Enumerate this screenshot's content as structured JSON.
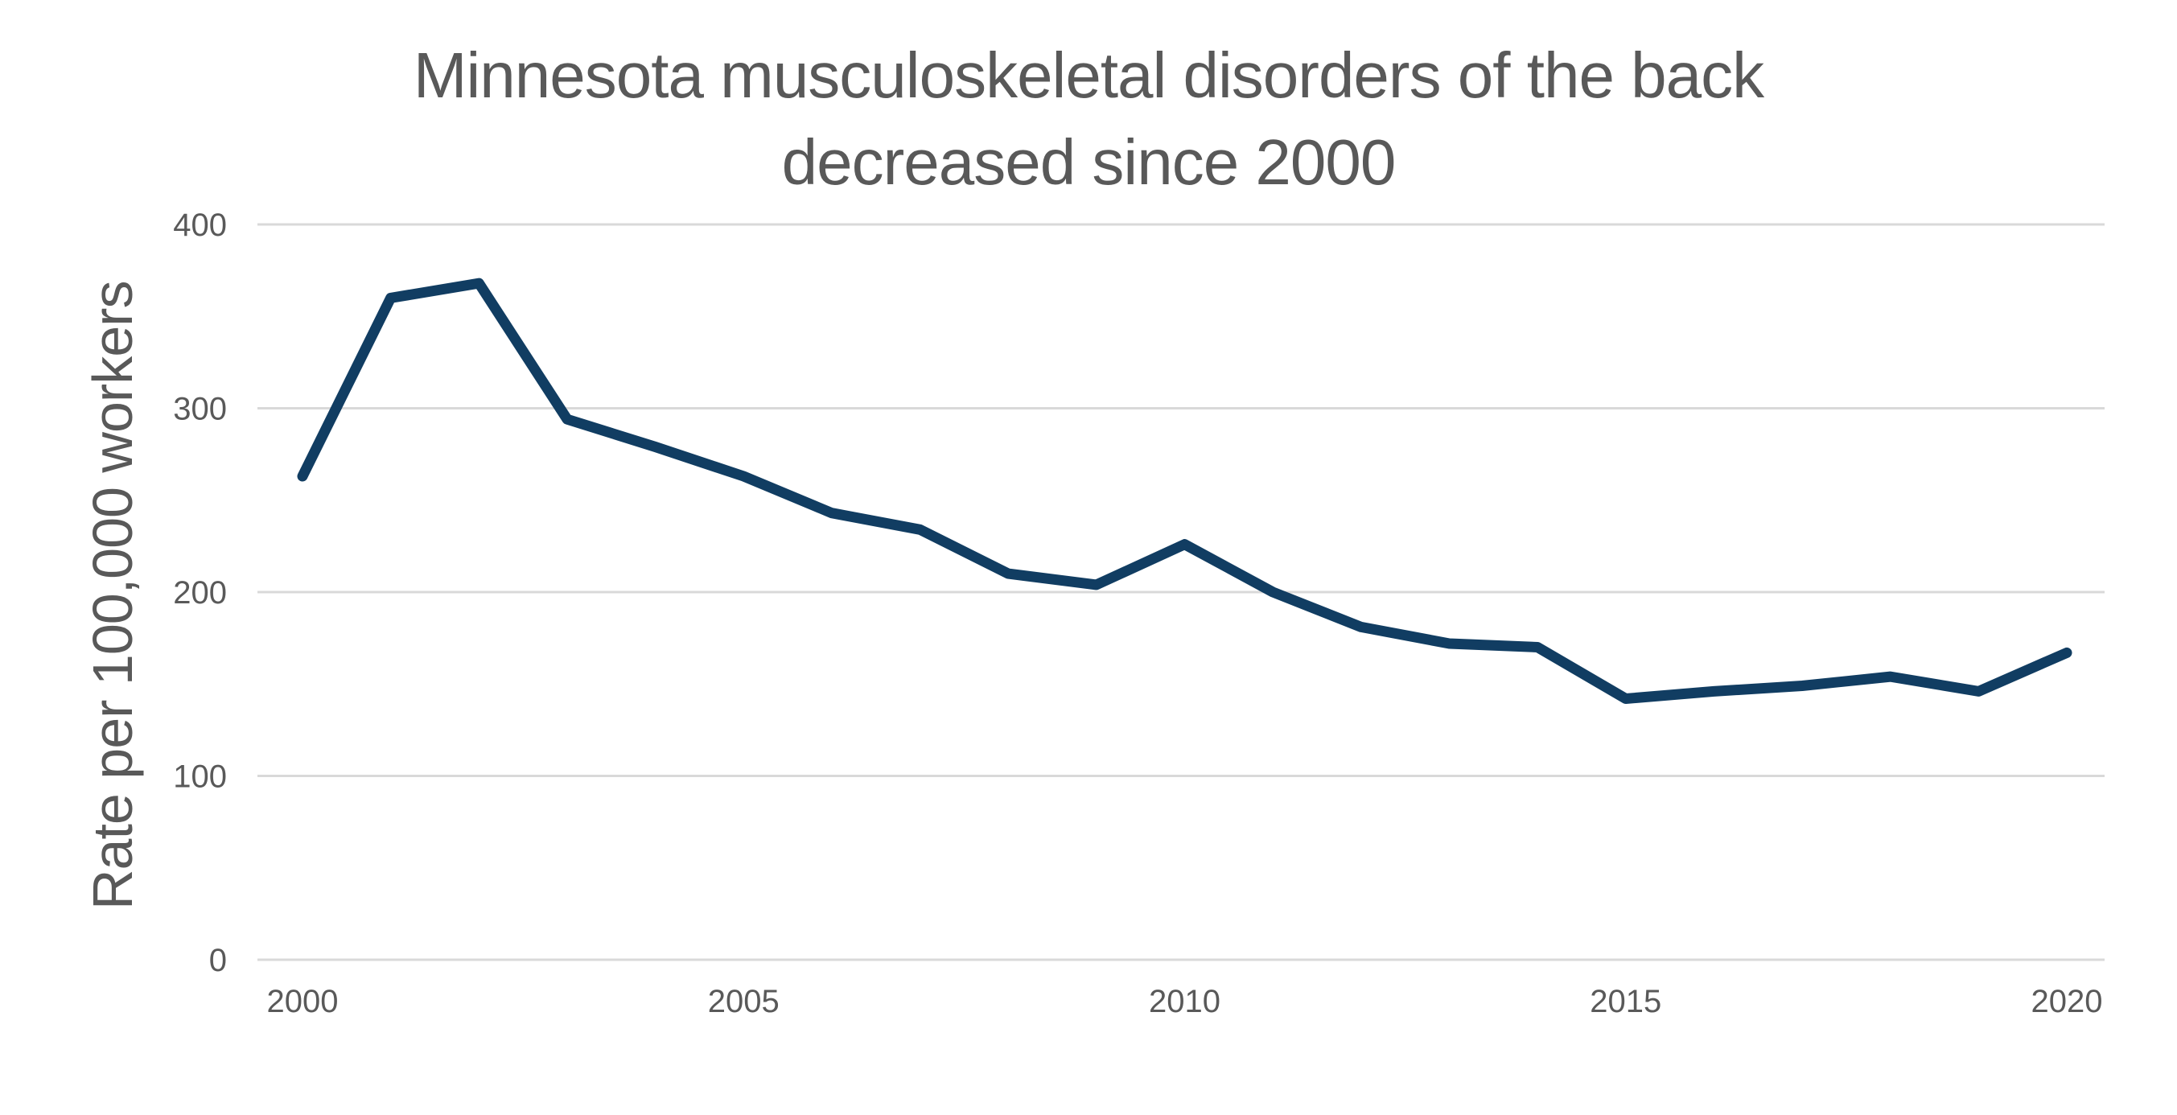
{
  "title": "Minnesota musculoskeletal disorders of the back decreased since 2000",
  "colors": {
    "line": "#113D62",
    "gridline": "#D9D9D9",
    "text": "#595959",
    "background": "#FFFFFF"
  },
  "chart_data": {
    "type": "line",
    "title": "Minnesota musculoskeletal disorders of the back decreased since 2000",
    "xlabel": "",
    "ylabel": "Rate per 100,000 workers",
    "x": [
      2000,
      2001,
      2002,
      2003,
      2004,
      2005,
      2006,
      2007,
      2008,
      2009,
      2010,
      2011,
      2012,
      2013,
      2014,
      2015,
      2016,
      2017,
      2018,
      2019,
      2020
    ],
    "values": [
      263,
      360,
      368,
      294,
      279,
      263,
      243,
      234,
      210,
      204,
      226,
      200,
      181,
      172,
      170,
      142,
      146,
      149,
      154,
      146,
      167
    ],
    "series": [
      {
        "name": "Rate per 100,000 workers",
        "values": [
          263,
          360,
          368,
          294,
          279,
          263,
          243,
          234,
          210,
          204,
          226,
          200,
          181,
          172,
          170,
          142,
          146,
          149,
          154,
          146,
          167
        ]
      }
    ],
    "ylim": [
      0,
      400
    ],
    "yticks": [
      0,
      100,
      200,
      300,
      400
    ],
    "xticks": [
      2000,
      2005,
      2010,
      2015,
      2020
    ],
    "grid": "horizontal",
    "legend_position": "none"
  }
}
